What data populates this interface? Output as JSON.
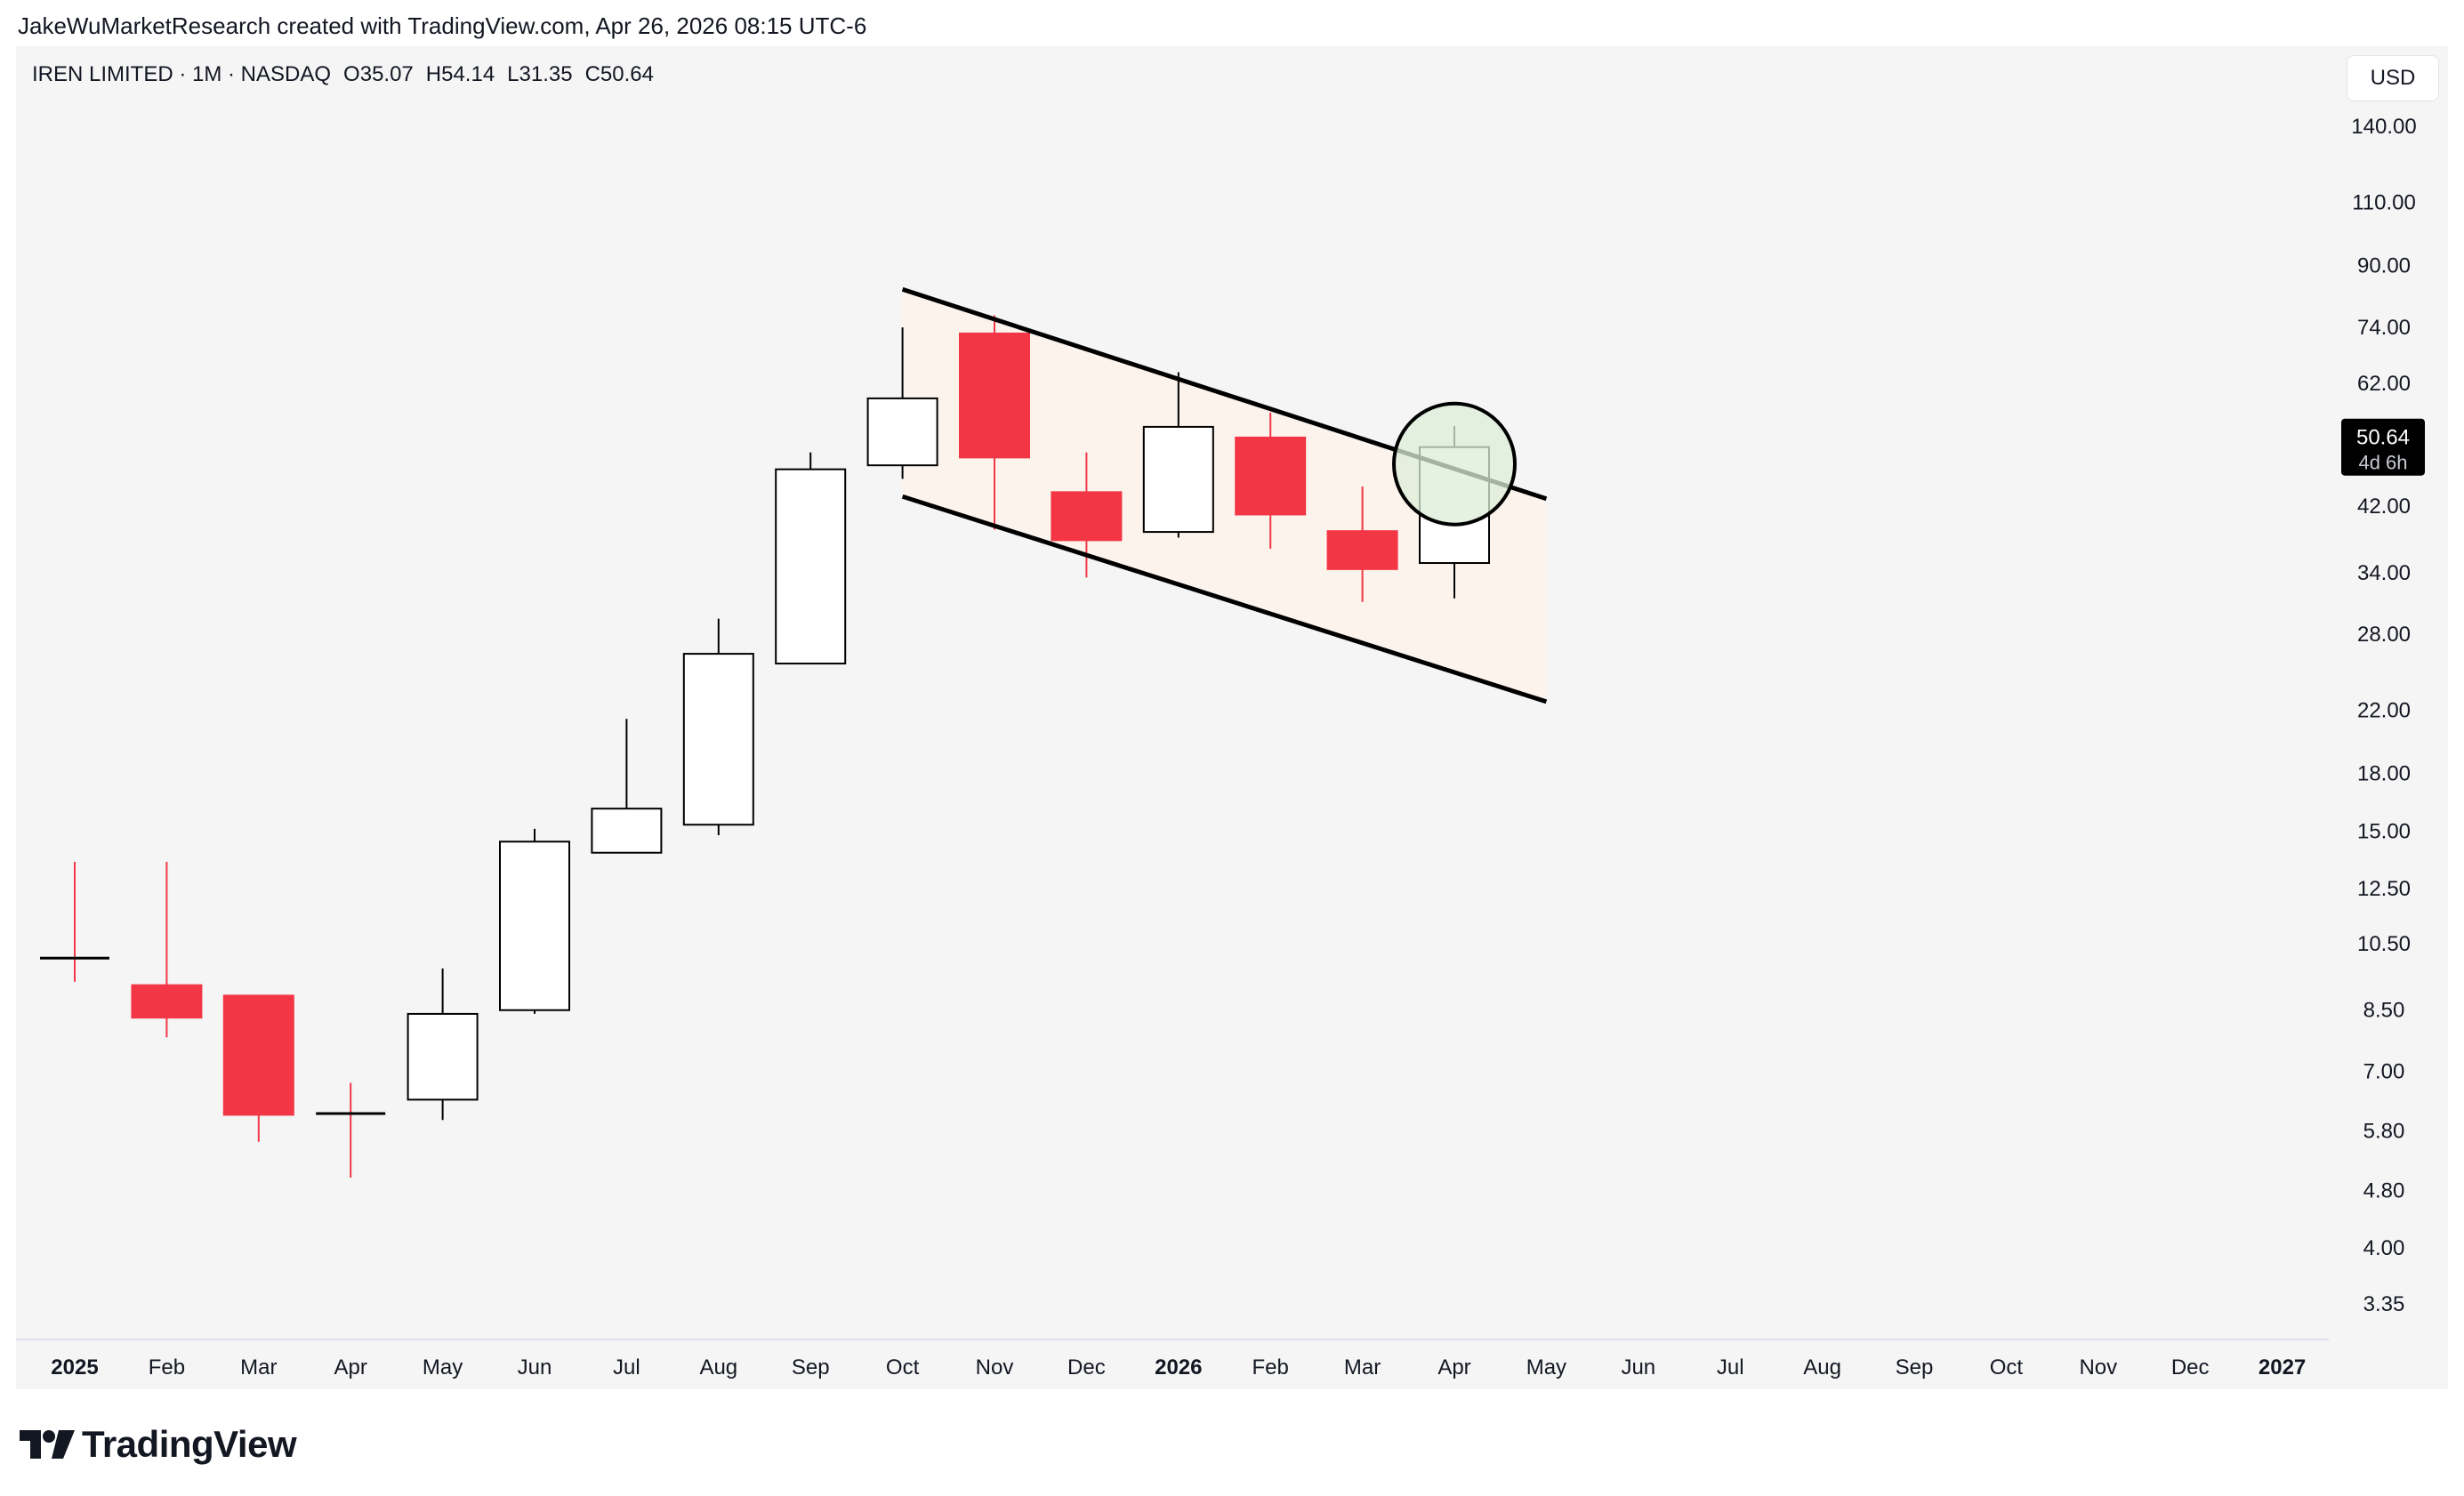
{
  "header": {
    "credit": "JakeWuMarketResearch created with TradingView.com, Apr 26, 2026 08:15 UTC-6"
  },
  "legend": {
    "symbol": "IREN LIMITED · 1M · NASDAQ",
    "open": "O35.07",
    "high": "H54.14",
    "low": "L31.35",
    "close": "C50.64"
  },
  "currency": "USD",
  "brand": {
    "name": "TradingView",
    "logo_icon": "tradingview-logo-icon"
  },
  "price_badge": {
    "value": "50.64",
    "countdown": "4d 6h"
  },
  "colors": {
    "up_fill": "#ffffff",
    "down_fill": "#f23645",
    "candle_outline": "#000000",
    "channel_fill": "#fcf3ed",
    "highlight_circle_fill": "#dceed7",
    "badge_bg": "#000000"
  },
  "chart_data": {
    "type": "candlestick",
    "scale": "log",
    "y_ticks": [
      3.35,
      4.0,
      4.8,
      5.8,
      7.0,
      8.5,
      10.5,
      12.5,
      15.0,
      18.0,
      22.0,
      28.0,
      34.0,
      42.0,
      62.0,
      74.0,
      90.0,
      110.0,
      140.0
    ],
    "y_tick_labels": [
      "3.35",
      "4.00",
      "4.80",
      "5.80",
      "7.00",
      "8.50",
      "10.50",
      "12.50",
      "15.00",
      "18.00",
      "22.00",
      "28.00",
      "34.00",
      "42.00",
      "62.00",
      "74.00",
      "90.00",
      "110.00",
      "140.00"
    ],
    "x_labels": [
      {
        "label": "2025",
        "bold": true
      },
      {
        "label": "Feb"
      },
      {
        "label": "Mar"
      },
      {
        "label": "Apr"
      },
      {
        "label": "May"
      },
      {
        "label": "Jun"
      },
      {
        "label": "Jul"
      },
      {
        "label": "Aug"
      },
      {
        "label": "Sep"
      },
      {
        "label": "Oct"
      },
      {
        "label": "Nov"
      },
      {
        "label": "Dec"
      },
      {
        "label": "2026",
        "bold": true
      },
      {
        "label": "Feb"
      },
      {
        "label": "Mar"
      },
      {
        "label": "Apr"
      },
      {
        "label": "May"
      },
      {
        "label": "Jun"
      },
      {
        "label": "Jul"
      },
      {
        "label": "Aug"
      },
      {
        "label": "Sep"
      },
      {
        "label": "Oct"
      },
      {
        "label": "Nov"
      },
      {
        "label": "Dec"
      },
      {
        "label": "2027",
        "bold": true
      }
    ],
    "candles": [
      {
        "month": "2025-01",
        "open": 10.05,
        "high": 13.6,
        "low": 9.3,
        "close": 10.0
      },
      {
        "month": "2025-02",
        "open": 9.2,
        "high": 13.6,
        "low": 7.8,
        "close": 8.3
      },
      {
        "month": "2025-03",
        "open": 8.9,
        "high": 8.9,
        "low": 5.6,
        "close": 6.1
      },
      {
        "month": "2025-04",
        "open": 6.15,
        "high": 6.75,
        "low": 5.0,
        "close": 6.1
      },
      {
        "month": "2025-05",
        "open": 6.4,
        "high": 9.7,
        "low": 6.0,
        "close": 8.4
      },
      {
        "month": "2025-06",
        "open": 8.5,
        "high": 15.1,
        "low": 8.4,
        "close": 14.5
      },
      {
        "month": "2025-07",
        "open": 14.0,
        "high": 21.4,
        "low": 14.0,
        "close": 16.1
      },
      {
        "month": "2025-08",
        "open": 15.3,
        "high": 29.4,
        "low": 14.8,
        "close": 26.3
      },
      {
        "month": "2025-09",
        "open": 25.5,
        "high": 49.8,
        "low": 25.5,
        "close": 47.2
      },
      {
        "month": "2025-10",
        "open": 47.8,
        "high": 74.0,
        "low": 45.8,
        "close": 59.1
      },
      {
        "month": "2025-11",
        "open": 72.6,
        "high": 76.9,
        "low": 39.0,
        "close": 49.0
      },
      {
        "month": "2025-12",
        "open": 43.9,
        "high": 49.8,
        "low": 33.5,
        "close": 37.7
      },
      {
        "month": "2026-01",
        "open": 38.7,
        "high": 64.2,
        "low": 38.0,
        "close": 54.0
      },
      {
        "month": "2026-02",
        "open": 52.2,
        "high": 56.5,
        "low": 36.7,
        "close": 40.9
      },
      {
        "month": "2026-03",
        "open": 38.8,
        "high": 44.7,
        "low": 31.0,
        "close": 34.4
      },
      {
        "month": "2026-04",
        "open": 35.07,
        "high": 54.14,
        "low": 31.35,
        "close": 50.64
      }
    ],
    "annotations": {
      "channel_upper": {
        "from": {
          "month": "2025-10",
          "price": 83.5
        },
        "to": {
          "month": "2026-05",
          "price": 43.0
        }
      },
      "channel_lower": {
        "from": {
          "month": "2025-10",
          "price": 43.3
        },
        "to": {
          "month": "2026-05",
          "price": 22.6
        }
      },
      "highlight_circle": {
        "month": "2026-04",
        "price": 48.0
      }
    },
    "last_price": 50.64
  }
}
